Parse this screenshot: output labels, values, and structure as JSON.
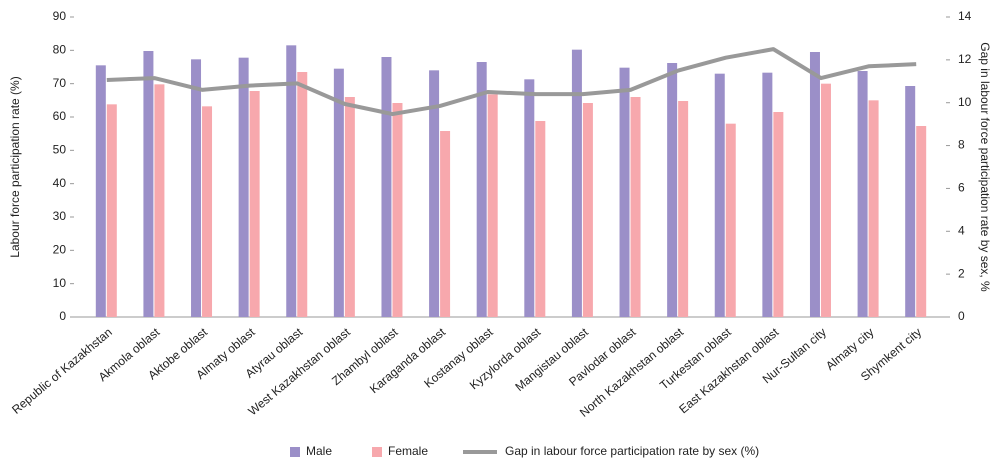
{
  "chart_data": {
    "type": "bar",
    "y_label": "Labour force participation rate (%)",
    "y2_label": "Gap in labour force participation rate by sex, %",
    "categories": [
      "Republic of Kazakhstan",
      "Akmola oblast",
      "Aktobe oblast",
      "Almaty oblast",
      "Atyrau oblast",
      "West Kazakhstan oblast",
      "Zhambyl oblast",
      "Karaganda oblast",
      "Kostanay oblast",
      "Kyzylorda oblast",
      "Mangistau oblast",
      "Pavlodar oblast",
      "North Kazakhstan oblast",
      "Turkestan oblast",
      "East Kazakhstan oblast",
      "Nur-Sultan city",
      "Almaty city",
      "Shymkent city"
    ],
    "series": [
      {
        "name": "Male",
        "color": "#9b8fc8",
        "values": [
          75.5,
          79.8,
          77.3,
          77.8,
          81.5,
          74.5,
          78,
          74,
          76.5,
          71.3,
          80.2,
          74.8,
          76.2,
          73,
          73.3,
          79.5,
          73.8,
          69.3
        ]
      },
      {
        "name": "Female",
        "color": "#f7a8ad",
        "values": [
          63.8,
          69.8,
          63.2,
          67.8,
          73.5,
          66,
          64.2,
          55.8,
          66.8,
          58.8,
          64.2,
          66,
          64.8,
          58,
          61.5,
          70,
          65,
          57.3
        ]
      },
      {
        "name": "Gap in labour force participation rate by sex (%)",
        "color": "#999999",
        "type": "line",
        "axis": "y2",
        "values": [
          11.06,
          11.15,
          10.6,
          10.8,
          10.9,
          9.94,
          9.47,
          9.85,
          10.5,
          10.4,
          10.4,
          10.6,
          11.5,
          12.1,
          12.5,
          11.15,
          11.7,
          11.8
        ]
      }
    ],
    "ylim": [
      0,
      90
    ],
    "yticks": [
      0,
      10,
      20,
      30,
      40,
      50,
      60,
      70,
      80,
      90
    ],
    "y2lim": [
      0,
      14
    ],
    "y2ticks": [
      0,
      2,
      4,
      6,
      8,
      10,
      12,
      14
    ],
    "grid": false
  }
}
